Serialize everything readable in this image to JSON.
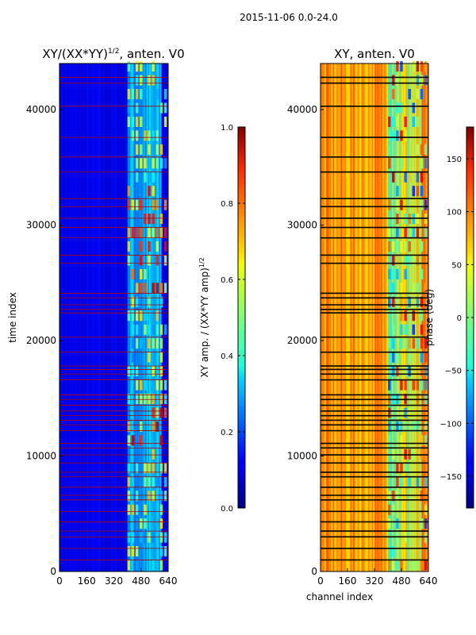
{
  "figure": {
    "suptitle": "2015-11-06 0.0-24.0"
  },
  "chart_data": [
    {
      "type": "heatmap",
      "title": "XY/(XX*YY)",
      "title_exponent": "1/2",
      "title_suffix": ", anten. V0",
      "xlabel": "",
      "ylabel": "time index",
      "xlim": [
        0,
        640
      ],
      "ylim": [
        0,
        44000
      ],
      "xticks": [
        "0",
        "160",
        "320",
        "480",
        "640"
      ],
      "yticks": [
        "0",
        "10000",
        "20000",
        "30000",
        "40000"
      ],
      "xtick_values": [
        0,
        160,
        320,
        480,
        640
      ],
      "ytick_values": [
        0,
        10000,
        20000,
        30000,
        40000
      ],
      "colormap": "jet",
      "flag_line_color": "#b00000",
      "colorbar": {
        "label": "XY amp. / (XX*YY amp)",
        "label_exponent": "1/2",
        "range": [
          0,
          1
        ],
        "ticks": [
          "0.0",
          "0.2",
          "0.4",
          "0.6",
          "0.8",
          "1.0"
        ],
        "tick_values": [
          0,
          0.2,
          0.4,
          0.6,
          0.8,
          1.0
        ]
      }
    },
    {
      "type": "heatmap",
      "title": "XY, anten. V0",
      "xlabel": "channel index",
      "ylabel": "",
      "xlim": [
        0,
        640
      ],
      "ylim": [
        0,
        44000
      ],
      "xticks": [
        "0",
        "160",
        "320",
        "480",
        "640"
      ],
      "yticks": [
        "0",
        "10000",
        "20000",
        "30000",
        "40000"
      ],
      "xtick_values": [
        0,
        160,
        320,
        480,
        640
      ],
      "ytick_values": [
        0,
        10000,
        20000,
        30000,
        40000
      ],
      "colormap": "jet",
      "flag_line_color": "#000000",
      "colorbar": {
        "label": "phase (deg)",
        "range": [
          -180,
          180
        ],
        "ticks": [
          "−150",
          "−100",
          "−50",
          "0",
          "50",
          "100",
          "150"
        ],
        "tick_values": [
          -150,
          -100,
          -50,
          0,
          50,
          100,
          150
        ]
      }
    }
  ],
  "flag_times": [
    1000,
    2000,
    3000,
    3500,
    4300,
    5200,
    6200,
    6600,
    7300,
    8200,
    8600,
    9400,
    10100,
    10700,
    11100,
    12200,
    12700,
    13100,
    13500,
    13900,
    14400,
    14900,
    15300,
    16600,
    17100,
    17500,
    17800,
    19000,
    20300,
    22400,
    22700,
    23100,
    23700,
    24100,
    26700,
    27400,
    28900,
    29800,
    30600,
    31600,
    32300,
    34600,
    35900,
    37600,
    40300,
    42300,
    42800
  ]
}
